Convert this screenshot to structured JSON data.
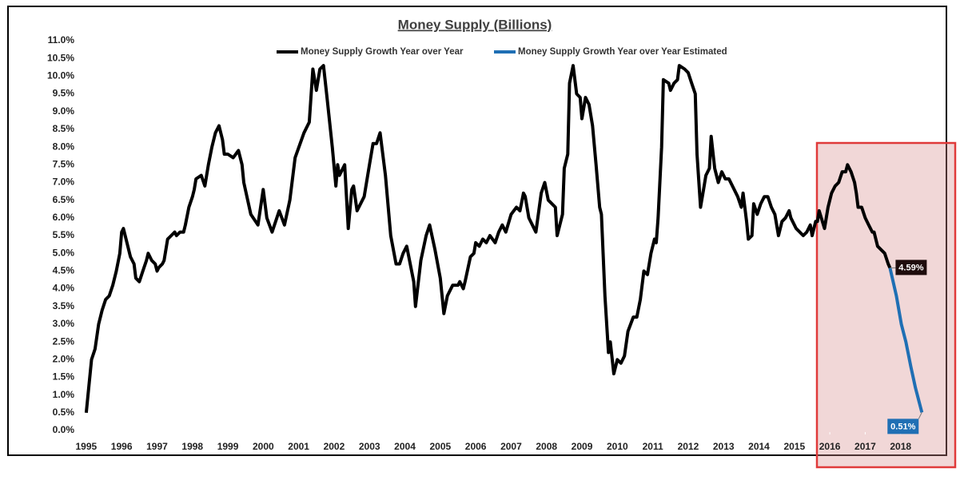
{
  "chart_data": {
    "type": "line",
    "title": "Money Supply (Billions)",
    "xlim": [
      1994.8,
      2019.0
    ],
    "xticks": [
      1995,
      1996,
      1997,
      1998,
      1999,
      2000,
      2001,
      2002,
      2003,
      2004,
      2005,
      2006,
      2007,
      2008,
      2009,
      2010,
      2011,
      2012,
      2013,
      2014,
      2015,
      2016,
      2017,
      2018
    ],
    "ylim": [
      0,
      11
    ],
    "yticks": [
      {
        "value": 0,
        "label": "0.0%"
      },
      {
        "value": 0.5,
        "label": "0.5%"
      },
      {
        "value": 1,
        "label": "1.0%"
      },
      {
        "value": 1.5,
        "label": "1.5%"
      },
      {
        "value": 2,
        "label": "2.0%"
      },
      {
        "value": 2.5,
        "label": "2.5%"
      },
      {
        "value": 3,
        "label": "3.0%"
      },
      {
        "value": 3.5,
        "label": "3.5%"
      },
      {
        "value": 4,
        "label": "4.0%"
      },
      {
        "value": 4.5,
        "label": "4.5%"
      },
      {
        "value": 5,
        "label": "5.0%"
      },
      {
        "value": 5.5,
        "label": "5.5%"
      },
      {
        "value": 6,
        "label": "6.0%"
      },
      {
        "value": 6.5,
        "label": "6.5%"
      },
      {
        "value": 7,
        "label": "7.0%"
      },
      {
        "value": 7.5,
        "label": "7.5%"
      },
      {
        "value": 8,
        "label": "8.0%"
      },
      {
        "value": 8.5,
        "label": "8.5%"
      },
      {
        "value": 9,
        "label": "9.0%"
      },
      {
        "value": 9.5,
        "label": "9.5%"
      },
      {
        "value": 10,
        "label": "10.0%"
      },
      {
        "value": 10.5,
        "label": "10.5%"
      },
      {
        "value": 11,
        "label": "11.0%"
      }
    ],
    "grid": false,
    "legend": "top",
    "series": [
      {
        "name": "Money Supply Growth Year over Year",
        "color": "#000000",
        "x": [
          1995.0,
          1995.05,
          1995.15,
          1995.25,
          1995.35,
          1995.45,
          1995.55,
          1995.65,
          1995.75,
          1995.85,
          1995.95,
          1996.0,
          1996.05,
          1996.15,
          1996.25,
          1996.35,
          1996.4,
          1996.5,
          1996.6,
          1996.7,
          1996.75,
          1996.85,
          1996.95,
          1997.0,
          1997.05,
          1997.15,
          1997.2,
          1997.3,
          1997.4,
          1997.5,
          1997.55,
          1997.65,
          1997.75,
          1997.8,
          1997.9,
          1998.0,
          1998.05,
          1998.1,
          1998.25,
          1998.35,
          1998.45,
          1998.55,
          1998.65,
          1998.75,
          1998.85,
          1998.9,
          1999.0,
          1999.15,
          1999.3,
          1999.4,
          1999.45,
          1999.65,
          1999.85,
          2000.0,
          2000.1,
          2000.25,
          2000.45,
          2000.6,
          2000.75,
          2000.9,
          2001.15,
          2001.3,
          2001.4,
          2001.5,
          2001.6,
          2001.7,
          2001.8,
          2001.95,
          2002.05,
          2002.1,
          2002.15,
          2002.3,
          2002.4,
          2002.5,
          2002.55,
          2002.65,
          2002.85,
          2003.0,
          2003.1,
          2003.2,
          2003.3,
          2003.45,
          2003.6,
          2003.75,
          2003.85,
          2003.95,
          2004.05,
          2004.25,
          2004.3,
          2004.45,
          2004.6,
          2004.7,
          2004.85,
          2005.0,
          2005.1,
          2005.2,
          2005.35,
          2005.5,
          2005.55,
          2005.65,
          2005.7,
          2005.85,
          2005.95,
          2006.0,
          2006.1,
          2006.2,
          2006.3,
          2006.4,
          2006.55,
          2006.65,
          2006.75,
          2006.85,
          2007.0,
          2007.15,
          2007.25,
          2007.35,
          2007.4,
          2007.5,
          2007.7,
          2007.85,
          2007.95,
          2008.05,
          2008.15,
          2008.25,
          2008.3,
          2008.45,
          2008.5,
          2008.6,
          2008.65,
          2008.75,
          2008.85,
          2008.95,
          2009.0,
          2009.1,
          2009.2,
          2009.3,
          2009.4,
          2009.5,
          2009.55,
          2009.65,
          2009.75,
          2009.8,
          2009.9,
          2010.0,
          2010.1,
          2010.2,
          2010.3,
          2010.45,
          2010.55,
          2010.65,
          2010.75,
          2010.85,
          2010.95,
          2011.05,
          2011.1,
          2011.15,
          2011.25,
          2011.3,
          2011.45,
          2011.5,
          2011.6,
          2011.7,
          2011.75,
          2011.9,
          2012.0,
          2012.1,
          2012.2,
          2012.25,
          2012.35,
          2012.45,
          2012.5,
          2012.6,
          2012.65,
          2012.75,
          2012.85,
          2012.95,
          2013.05,
          2013.15,
          2013.25,
          2013.4,
          2013.5,
          2013.55,
          2013.65,
          2013.7,
          2013.8,
          2013.85,
          2013.95,
          2014.05,
          2014.15,
          2014.25,
          2014.35,
          2014.45,
          2014.55,
          2014.65,
          2014.75,
          2014.85,
          2014.9,
          2015.05,
          2015.15,
          2015.25,
          2015.35,
          2015.45,
          2015.5,
          2015.6,
          2015.65,
          2015.7,
          2015.85,
          2015.95,
          2016.05,
          2016.15,
          2016.25,
          2016.35,
          2016.45,
          2016.5,
          2016.6,
          2016.7,
          2016.75,
          2016.8,
          2016.9,
          2017.0,
          2017.1,
          2017.2,
          2017.25,
          2017.35,
          2017.45,
          2017.55,
          2017.65,
          2017.7
        ],
        "values": [
          0.5,
          1.0,
          2.0,
          2.3,
          3.0,
          3.4,
          3.7,
          3.8,
          4.1,
          4.5,
          5.0,
          5.6,
          5.7,
          5.3,
          4.9,
          4.7,
          4.3,
          4.2,
          4.5,
          4.8,
          5.0,
          4.8,
          4.7,
          4.5,
          4.6,
          4.7,
          4.8,
          5.4,
          5.5,
          5.6,
          5.5,
          5.6,
          5.6,
          5.8,
          6.3,
          6.6,
          6.8,
          7.1,
          7.2,
          6.9,
          7.5,
          8.0,
          8.4,
          8.6,
          8.2,
          7.8,
          7.8,
          7.7,
          7.9,
          7.5,
          7.0,
          6.1,
          5.8,
          6.8,
          6.0,
          5.6,
          6.2,
          5.8,
          6.5,
          7.7,
          8.4,
          8.7,
          10.2,
          9.6,
          10.2,
          10.3,
          9.4,
          8.0,
          6.9,
          7.5,
          7.2,
          7.5,
          5.7,
          6.8,
          6.9,
          6.2,
          6.6,
          7.5,
          8.1,
          8.1,
          8.4,
          7.2,
          5.5,
          4.7,
          4.7,
          5.0,
          5.2,
          4.2,
          3.5,
          4.8,
          5.5,
          5.8,
          5.1,
          4.3,
          3.3,
          3.8,
          4.1,
          4.1,
          4.2,
          4.0,
          4.2,
          4.9,
          5.0,
          5.3,
          5.2,
          5.4,
          5.3,
          5.5,
          5.3,
          5.6,
          5.8,
          5.6,
          6.1,
          6.3,
          6.2,
          6.7,
          6.6,
          6.0,
          5.6,
          6.7,
          7.0,
          6.5,
          6.4,
          6.3,
          5.5,
          6.1,
          7.4,
          7.8,
          9.8,
          10.3,
          9.5,
          9.4,
          8.8,
          9.4,
          9.2,
          8.6,
          7.5,
          6.3,
          6.1,
          3.8,
          2.2,
          2.5,
          1.6,
          2.0,
          1.9,
          2.1,
          2.8,
          3.2,
          3.2,
          3.7,
          4.5,
          4.4,
          5.0,
          5.4,
          5.3,
          6.0,
          8.0,
          9.9,
          9.8,
          9.6,
          9.8,
          9.9,
          10.3,
          10.2,
          10.1,
          9.8,
          9.5,
          7.8,
          6.3,
          6.9,
          7.2,
          7.4,
          8.3,
          7.4,
          7.0,
          7.3,
          7.1,
          7.1,
          6.9,
          6.6,
          6.3,
          6.7,
          5.9,
          5.4,
          5.5,
          6.4,
          6.1,
          6.4,
          6.6,
          6.6,
          6.3,
          6.1,
          5.5,
          5.9,
          6.0,
          6.2,
          6.0,
          5.7,
          5.6,
          5.5,
          5.6,
          5.8,
          5.5,
          5.9,
          5.9,
          6.2,
          5.7,
          6.3,
          6.7,
          6.9,
          7.0,
          7.3,
          7.3,
          7.5,
          7.3,
          7.0,
          6.7,
          6.3,
          6.3,
          6.0,
          5.8,
          5.6,
          5.6,
          5.2,
          5.1,
          5.0,
          4.7,
          4.59
        ]
      },
      {
        "name": "Money Supply Growth Year over Year Estimated",
        "color": "#1f6fb4",
        "x": [
          2017.7,
          2017.88,
          2018.02,
          2018.15,
          2018.29,
          2018.42,
          2018.6
        ],
        "values": [
          4.59,
          3.8,
          3.0,
          2.5,
          1.8,
          1.2,
          0.51
        ],
        "value_labels": [
          "4.59%",
          null,
          null,
          null,
          null,
          null,
          "0.51%"
        ]
      }
    ]
  }
}
